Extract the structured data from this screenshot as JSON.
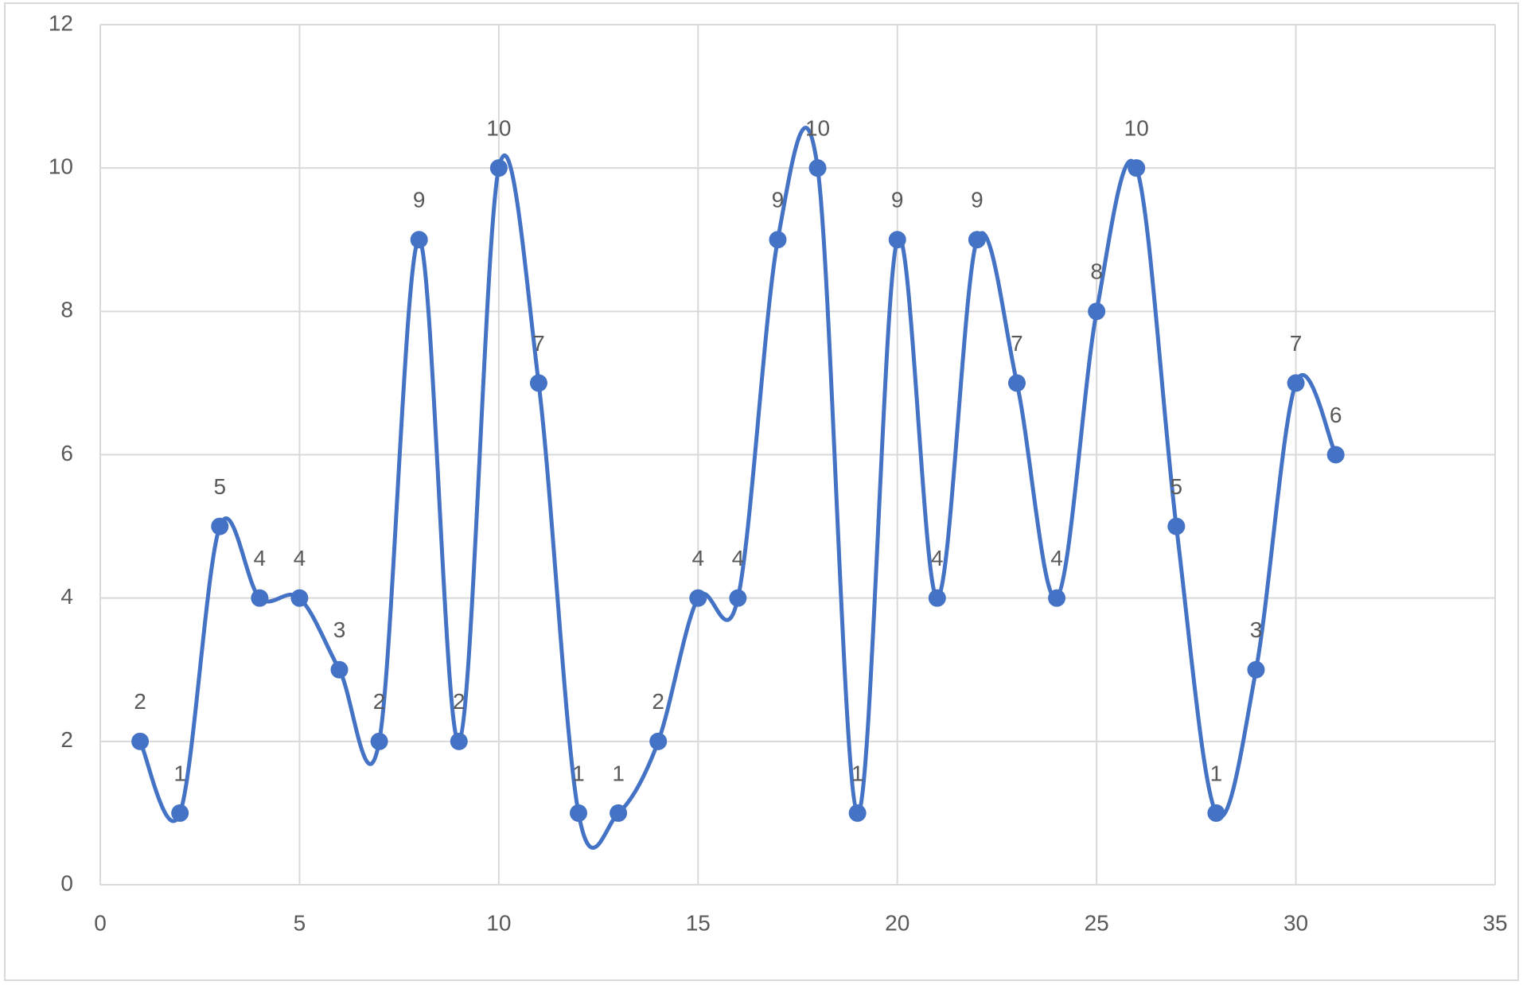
{
  "chart_data": {
    "type": "scatter_smooth",
    "x": [
      1,
      2,
      3,
      4,
      5,
      6,
      7,
      8,
      9,
      10,
      11,
      12,
      13,
      14,
      15,
      16,
      17,
      18,
      19,
      20,
      21,
      22,
      23,
      24,
      25,
      26,
      27,
      28,
      29,
      30,
      31
    ],
    "values": [
      2,
      1,
      5,
      4,
      4,
      3,
      2,
      9,
      2,
      10,
      7,
      1,
      1,
      2,
      4,
      4,
      9,
      10,
      1,
      9,
      4,
      9,
      7,
      4,
      8,
      10,
      5,
      1,
      3,
      7,
      6
    ],
    "color": "#4472c4",
    "xlim": [
      0,
      35
    ],
    "xticks": [
      0,
      5,
      10,
      15,
      20,
      25,
      30,
      35
    ],
    "ylim": [
      0,
      12
    ],
    "yticks": [
      0,
      2,
      4,
      6,
      8,
      10,
      12
    ],
    "grid": true
  }
}
